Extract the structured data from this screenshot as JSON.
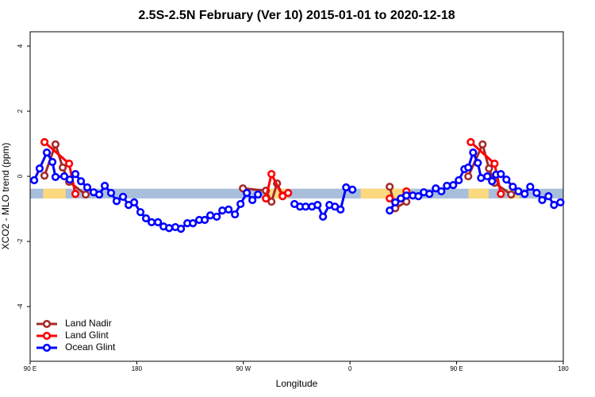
{
  "chart_data": {
    "type": "line",
    "title": "2.5S-2.5N February (Ver 10)   2015-01-01 to 2020-12-18",
    "x_label": "Longitude",
    "y_label": "XCO2 - MLO trend (ppm)",
    "xlim": [
      90,
      540
    ],
    "xticks": [
      {
        "value": 90,
        "label": "90 E"
      },
      180,
      {
        "value": 270,
        "label": "90 W"
      },
      {
        "value": 360,
        "label": "0"
      },
      {
        "value": 450,
        "label": "90 E"
      },
      {
        "value": 540,
        "label": "180"
      }
    ],
    "ylim": [
      -5.68,
      4.44
    ],
    "yticks": [
      -4,
      -2,
      0,
      2,
      4
    ],
    "band": {
      "ylim": [
        -0.68,
        -0.38
      ],
      "color": "#a8bfdc"
    },
    "land_regions": [
      [
        101,
        120
      ],
      [
        292,
        307
      ],
      [
        369,
        406
      ],
      [
        460,
        477
      ],
      [
        493,
        503
      ]
    ],
    "land_color": "#fcd97e",
    "legend": "bottom-left",
    "series": [
      {
        "name": "Land Nadir",
        "color": "#a52a2a",
        "x": [
          102.1,
          111.4,
          117.5,
          122.9,
          136.9,
          null,
          269.6,
          289.0,
          293.7,
          298.4,
          303.1,
          null,
          393.5,
          398.2,
          407.6,
          null,
          459.8,
          471.9,
          477.3,
          482.0,
          496.0
        ],
        "values": [
          0.02,
          0.98,
          0.27,
          -0.17,
          -0.56,
          null,
          -0.37,
          -0.44,
          -0.78,
          -0.22,
          -0.59,
          null,
          -0.32,
          -0.98,
          -0.78,
          null,
          0.0,
          0.98,
          0.24,
          -0.2,
          -0.56
        ]
      },
      {
        "name": "Land Glint",
        "color": "#ff0000",
        "x": [
          102.1,
          122.9,
          128.2,
          null,
          289.0,
          293.7,
          303.1,
          307.8,
          null,
          393.5,
          398.2,
          407.6,
          null,
          461.9,
          482.0,
          487.3
        ],
        "values": [
          1.05,
          0.39,
          -0.54,
          null,
          -0.68,
          0.07,
          -0.61,
          -0.51,
          null,
          -0.68,
          -0.8,
          -0.46,
          null,
          1.05,
          0.39,
          -0.54
        ]
      },
      {
        "name": "Ocean Glint",
        "color": "#0000ff",
        "x": [
          93.4,
          98.0,
          104.1,
          108.8,
          111.4,
          118.8,
          123.5,
          128.2,
          132.9,
          138.2,
          143.6,
          148.3,
          153.0,
          158.3,
          163.0,
          168.4,
          173.1,
          177.8,
          183.1,
          187.8,
          192.5,
          197.9,
          202.6,
          207.3,
          212.6,
          217.3,
          222.7,
          227.4,
          232.7,
          237.4,
          242.1,
          247.5,
          252.2,
          257.5,
          262.9,
          267.6,
          272.9,
          277.6,
          282.3,
          null,
          313.1,
          317.8,
          322.5,
          327.9,
          332.6,
          337.2,
          342.6,
          347.3,
          352.0,
          356.7,
          362.0,
          null,
          393.5,
          398.2,
          402.9,
          407.6,
          413.0,
          417.7,
          422.3,
          427.0,
          432.4,
          437.1,
          441.8,
          447.1,
          451.8,
          456.5,
          459.8,
          463.9,
          467.9,
          470.6,
          475.9,
          479.9,
          483.3,
          487.3,
          492.0,
          497.4,
          502.1,
          507.4,
          512.1,
          517.5,
          522.2,
          527.5,
          532.2,
          537.6
        ],
        "values": [
          -0.12,
          0.24,
          0.73,
          0.44,
          -0.02,
          0.0,
          -0.1,
          0.07,
          -0.15,
          -0.34,
          -0.49,
          -0.56,
          -0.29,
          -0.51,
          -0.76,
          -0.63,
          -0.88,
          -0.8,
          -1.1,
          -1.29,
          -1.41,
          -1.41,
          -1.54,
          -1.59,
          -1.56,
          -1.61,
          -1.44,
          -1.44,
          -1.34,
          -1.34,
          -1.2,
          -1.24,
          -1.05,
          -1.02,
          -1.17,
          -0.85,
          -0.51,
          -0.73,
          -0.56,
          null,
          -0.85,
          -0.93,
          -0.93,
          -0.93,
          -0.88,
          -1.24,
          -0.88,
          -0.93,
          -1.02,
          -0.34,
          -0.41,
          null,
          -1.05,
          -0.8,
          -0.68,
          -0.59,
          -0.59,
          -0.61,
          -0.49,
          -0.54,
          -0.37,
          -0.46,
          -0.29,
          -0.27,
          -0.12,
          0.22,
          0.27,
          0.73,
          0.41,
          -0.05,
          0.0,
          -0.15,
          0.05,
          0.07,
          -0.1,
          -0.32,
          -0.46,
          -0.54,
          -0.32,
          -0.51,
          -0.73,
          -0.61,
          -0.88,
          -0.8
        ]
      }
    ]
  }
}
